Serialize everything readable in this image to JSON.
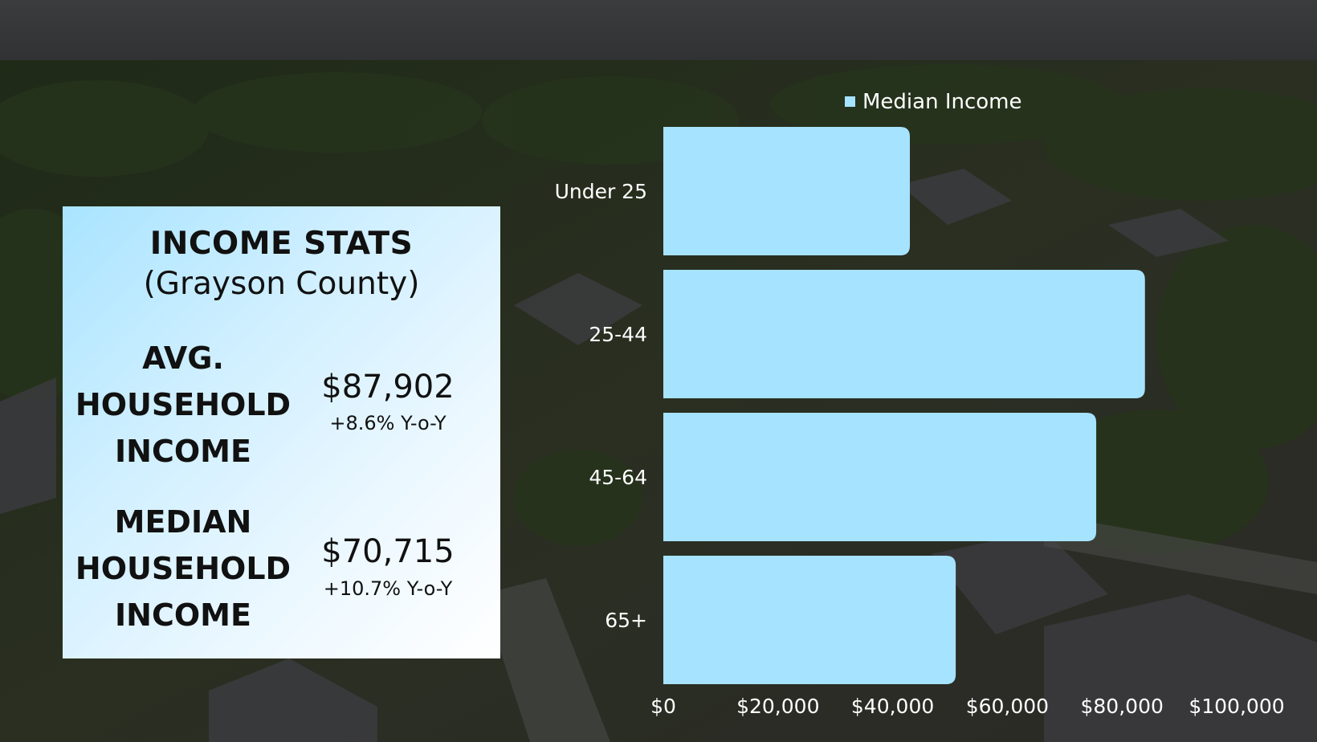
{
  "stats_card": {
    "title": "INCOME STATS",
    "subtitle": "(Grayson County)",
    "avg": {
      "label_lines": [
        "AVG.",
        "HOUSEHOLD",
        "INCOME"
      ],
      "value": "$87,902",
      "change": "+8.6% Y-o-Y"
    },
    "median": {
      "label_lines": [
        "MEDIAN",
        "HOUSEHOLD",
        "INCOME"
      ],
      "value": "$70,715",
      "change": "+10.7% Y-o-Y"
    }
  },
  "chart_data": {
    "type": "bar",
    "orientation": "horizontal",
    "categories": [
      "Under 25",
      "25-44",
      "45-64",
      "65+"
    ],
    "series": [
      {
        "name": "Median Income",
        "values": [
          43000,
          84000,
          75500,
          51000
        ],
        "color": "#a6e3ff"
      }
    ],
    "xlim": [
      0,
      100000
    ],
    "x_ticks": [
      0,
      20000,
      40000,
      60000,
      80000,
      100000
    ],
    "x_tick_labels": [
      "$0",
      "$20,000",
      "$40,000",
      "$60,000",
      "$80,000",
      "$100,000"
    ],
    "legend_position": "top",
    "grid": false
  }
}
